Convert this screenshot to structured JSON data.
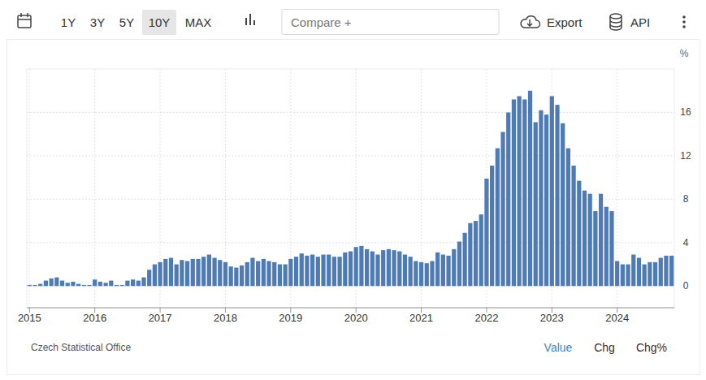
{
  "chart_data": {
    "type": "bar",
    "categories": [
      "2015",
      null,
      null,
      null,
      null,
      null,
      null,
      null,
      null,
      null,
      null,
      null,
      "2016",
      null,
      null,
      null,
      null,
      null,
      null,
      null,
      null,
      null,
      null,
      null,
      "2017",
      null,
      null,
      null,
      null,
      null,
      null,
      null,
      null,
      null,
      null,
      null,
      "2018",
      null,
      null,
      null,
      null,
      null,
      null,
      null,
      null,
      null,
      null,
      null,
      "2019",
      null,
      null,
      null,
      null,
      null,
      null,
      null,
      null,
      null,
      null,
      null,
      "2020",
      null,
      null,
      null,
      null,
      null,
      null,
      null,
      null,
      null,
      null,
      null,
      "2021",
      null,
      null,
      null,
      null,
      null,
      null,
      null,
      null,
      null,
      null,
      null,
      "2022",
      null,
      null,
      null,
      null,
      null,
      null,
      null,
      null,
      null,
      null,
      null,
      "2023",
      null,
      null,
      null,
      null,
      null,
      null,
      null,
      null,
      null,
      null,
      null,
      "2024",
      null,
      null,
      null,
      null,
      null,
      null,
      null,
      null,
      null,
      null
    ],
    "values": [
      0.1,
      0.1,
      0.2,
      0.5,
      0.7,
      0.8,
      0.5,
      0.3,
      0.4,
      0.2,
      0.1,
      0.1,
      0.6,
      0.4,
      0.3,
      0.5,
      0.1,
      0.1,
      0.5,
      0.6,
      0.5,
      0.8,
      1.5,
      2.0,
      2.2,
      2.5,
      2.6,
      2.0,
      2.4,
      2.3,
      2.5,
      2.5,
      2.7,
      2.9,
      2.6,
      2.4,
      2.2,
      1.8,
      1.7,
      1.9,
      2.2,
      2.6,
      2.3,
      2.5,
      2.3,
      2.2,
      2.0,
      2.0,
      2.5,
      2.7,
      3.0,
      2.8,
      2.9,
      2.7,
      2.9,
      2.9,
      2.7,
      2.7,
      3.1,
      3.2,
      3.6,
      3.7,
      3.4,
      3.2,
      2.9,
      3.3,
      3.4,
      3.3,
      3.2,
      2.9,
      2.7,
      2.3,
      2.2,
      2.1,
      2.3,
      3.1,
      2.9,
      2.8,
      3.4,
      4.1,
      4.9,
      5.8,
      6.0,
      6.6,
      9.9,
      11.1,
      12.7,
      14.2,
      16.0,
      17.2,
      17.5,
      17.2,
      18.0,
      15.1,
      16.2,
      15.8,
      17.5,
      16.7,
      15.0,
      12.7,
      11.1,
      9.7,
      8.8,
      8.5,
      6.9,
      8.5,
      7.3,
      6.9,
      2.3,
      2.0,
      2.0,
      2.9,
      2.6,
      2.0,
      2.2,
      2.2,
      2.6,
      2.8,
      2.8
    ],
    "color": "#4f7bb5",
    "ylim": [
      -2,
      20
    ],
    "yticks": [
      0,
      4,
      8,
      12,
      16
    ],
    "grid": true,
    "y_label": "%",
    "source": "Czech Statistical Office"
  },
  "toolbar": {
    "ranges": [
      "1Y",
      "3Y",
      "5Y",
      "10Y",
      "MAX"
    ],
    "selected": "10Y",
    "compare": "Compare +",
    "export": "Export",
    "api": "API"
  },
  "footer_tabs": {
    "items": [
      "Value",
      "Chg",
      "Chg%"
    ],
    "selected": "Value"
  }
}
